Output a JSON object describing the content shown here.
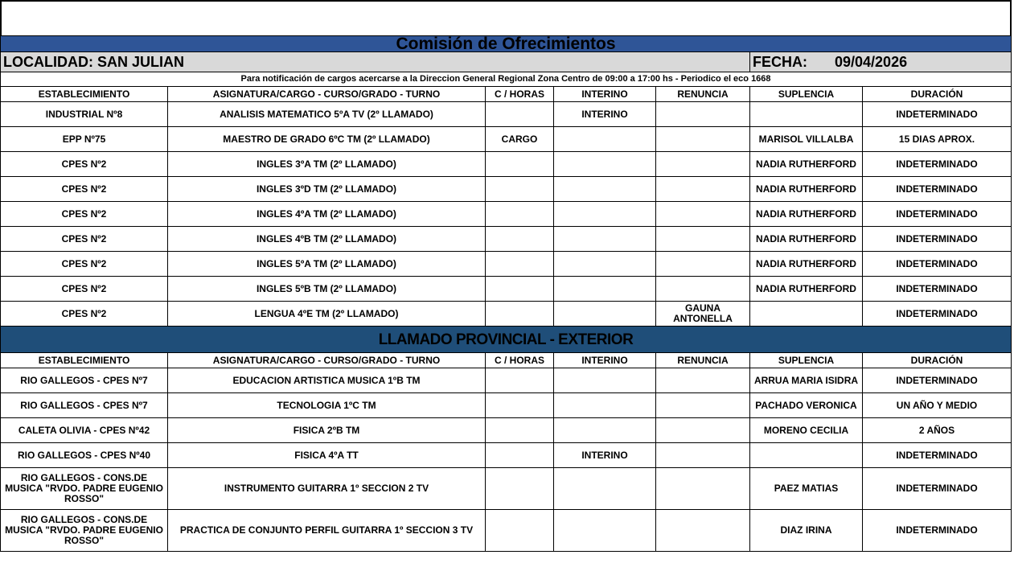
{
  "title": "Comisión de Ofrecimientos",
  "localidad": "LOCALIDAD: SAN JULIAN",
  "fecha_label": "FECHA:",
  "fecha": "09/04/2026",
  "note": "Para notificación de cargos acercarse a la Direccion General Regional Zona Centro de 09:00 a 17:00 hs - Periodico el eco 1668",
  "headers": [
    "ESTABLECIMIENTO",
    "ASIGNATURA/CARGO - CURSO/GRADO - TURNO",
    "C / HORAS",
    "INTERINO",
    "RENUNCIA",
    "SUPLENCIA",
    "DURACIÓN"
  ],
  "section1": [
    [
      "INDUSTRIAL Nº8",
      "ANALISIS MATEMATICO 5ºA TV (2º LLAMADO)",
      "",
      "INTERINO",
      "",
      "",
      "INDETERMINADO"
    ],
    [
      "EPP Nº75",
      "MAESTRO DE GRADO 6ºC TM (2º LLAMADO)",
      "CARGO",
      "",
      "",
      "MARISOL VILLALBA",
      "15 DIAS APROX."
    ],
    [
      "CPES Nº2",
      "INGLES 3ºA TM (2º LLAMADO)",
      "",
      "",
      "",
      "NADIA RUTHERFORD",
      "INDETERMINADO"
    ],
    [
      "CPES Nº2",
      "INGLES 3ºD TM (2º LLAMADO)",
      "",
      "",
      "",
      "NADIA RUTHERFORD",
      "INDETERMINADO"
    ],
    [
      "CPES Nº2",
      "INGLES 4ºA TM (2º LLAMADO)",
      "",
      "",
      "",
      "NADIA RUTHERFORD",
      "INDETERMINADO"
    ],
    [
      "CPES Nº2",
      "INGLES 4ºB TM (2º LLAMADO)",
      "",
      "",
      "",
      "NADIA RUTHERFORD",
      "INDETERMINADO"
    ],
    [
      "CPES Nº2",
      "INGLES 5ºA TM (2º LLAMADO)",
      "",
      "",
      "",
      "NADIA RUTHERFORD",
      "INDETERMINADO"
    ],
    [
      "CPES Nº2",
      "INGLES 5ºB TM (2º LLAMADO)",
      "",
      "",
      "",
      "NADIA RUTHERFORD",
      "INDETERMINADO"
    ],
    [
      "CPES Nº2",
      "LENGUA 4ºE TM (2º LLAMADO)",
      "",
      "",
      "GAUNA ANTONELLA",
      "",
      "INDETERMINADO"
    ]
  ],
  "section2_title": "LLAMADO PROVINCIAL - EXTERIOR",
  "section2": [
    [
      "RIO GALLEGOS - CPES Nº7",
      "EDUCACION ARTISTICA MUSICA 1ºB TM",
      "",
      "",
      "",
      "ARRUA MARIA ISIDRA",
      "INDETERMINADO"
    ],
    [
      "RIO GALLEGOS - CPES Nº7",
      "TECNOLOGIA 1ºC TM",
      "",
      "",
      "",
      "PACHADO VERONICA",
      "UN AÑO Y MEDIO"
    ],
    [
      "CALETA OLIVIA - CPES Nº42",
      "FISICA 2ºB TM",
      "",
      "",
      "",
      "MORENO CECILIA",
      "2 AÑOS"
    ],
    [
      "RIO GALLEGOS - CPES Nº40",
      "FISICA 4ºA TT",
      "",
      "INTERINO",
      "",
      "",
      "INDETERMINADO"
    ],
    [
      "RIO GALLEGOS - CONS.DE MUSICA \"RVDO. PADRE EUGENIO ROSSO\"",
      "INSTRUMENTO GUITARRA 1º SECCION 2 TV",
      "",
      "",
      "",
      "PAEZ MATIAS",
      "INDETERMINADO"
    ],
    [
      "RIO GALLEGOS - CONS.DE MUSICA \"RVDO. PADRE EUGENIO ROSSO\"",
      "PRACTICA DE CONJUNTO PERFIL GUITARRA 1º SECCION 3 TV",
      "",
      "",
      "",
      "DIAZ IRINA",
      "INDETERMINADO"
    ]
  ]
}
